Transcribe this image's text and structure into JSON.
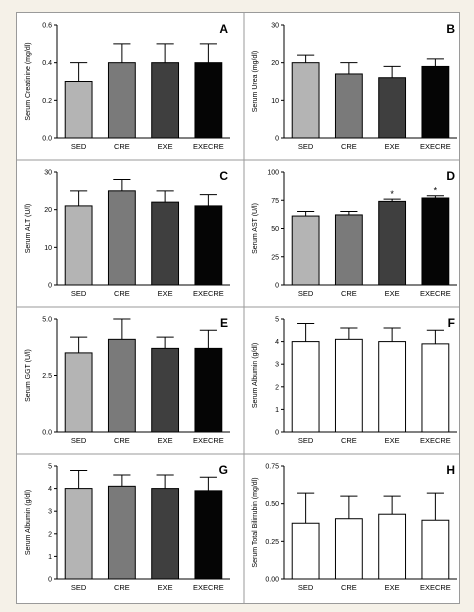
{
  "chart_data": [
    {
      "panel": "A",
      "type": "bar",
      "categories": [
        "SED",
        "CRE",
        "EXE",
        "EXECRE"
      ],
      "values": [
        0.3,
        0.4,
        0.4,
        0.4
      ],
      "errors": [
        0.1,
        0.1,
        0.1,
        0.1
      ],
      "ylabel": "Serum Creatinine (mg/dl)",
      "ylim": [
        0.0,
        0.6
      ],
      "yticks": [
        "0.0",
        "0.2",
        "0.4",
        "0.6"
      ],
      "colors": [
        "#b4b4b4",
        "#7a7a7a",
        "#3f3f3f",
        "#050505"
      ],
      "significance": [
        "",
        "",
        "",
        ""
      ]
    },
    {
      "panel": "B",
      "type": "bar",
      "categories": [
        "SED",
        "CRE",
        "EXE",
        "EXECRE"
      ],
      "values": [
        20,
        17,
        16,
        19
      ],
      "errors": [
        2,
        3,
        3,
        2
      ],
      "ylabel": "Serum Urea (mg/dl)",
      "ylim": [
        0,
        30
      ],
      "yticks": [
        "0",
        "10",
        "20",
        "30"
      ],
      "colors": [
        "#b4b4b4",
        "#7a7a7a",
        "#3f3f3f",
        "#050505"
      ],
      "significance": [
        "",
        "",
        "",
        ""
      ]
    },
    {
      "panel": "C",
      "type": "bar",
      "categories": [
        "SED",
        "CRE",
        "EXE",
        "EXECRE"
      ],
      "values": [
        21,
        25,
        22,
        21
      ],
      "errors": [
        4,
        3,
        3,
        3
      ],
      "ylabel": "Serum ALT (U/l)",
      "ylim": [
        0,
        30
      ],
      "yticks": [
        "0",
        "10",
        "20",
        "30"
      ],
      "colors": [
        "#b4b4b4",
        "#7a7a7a",
        "#3f3f3f",
        "#050505"
      ],
      "significance": [
        "",
        "",
        "",
        ""
      ]
    },
    {
      "panel": "D",
      "type": "bar",
      "categories": [
        "SED",
        "CRE",
        "EXE",
        "EXECRE"
      ],
      "values": [
        61,
        62,
        74,
        77
      ],
      "errors": [
        4,
        3,
        2,
        2
      ],
      "ylabel": "Serum AST (U/l)",
      "ylim": [
        0,
        100
      ],
      "yticks": [
        "0",
        "25",
        "50",
        "75",
        "100"
      ],
      "colors": [
        "#b4b4b4",
        "#7a7a7a",
        "#3f3f3f",
        "#050505"
      ],
      "significance": [
        "",
        "",
        "*",
        "*"
      ]
    },
    {
      "panel": "E",
      "type": "bar",
      "categories": [
        "SED",
        "CRE",
        "EXE",
        "EXECRE"
      ],
      "values": [
        3.5,
        4.1,
        3.7,
        3.7
      ],
      "errors": [
        0.7,
        0.9,
        0.5,
        0.8
      ],
      "ylabel": "Serum GGT (U/l)",
      "ylim": [
        0.0,
        5.0
      ],
      "yticks": [
        "0.0",
        "2.5",
        "5.0"
      ],
      "colors": [
        "#b4b4b4",
        "#7a7a7a",
        "#3f3f3f",
        "#050505"
      ],
      "significance": [
        "",
        "",
        "",
        ""
      ]
    },
    {
      "panel": "F",
      "type": "bar",
      "categories": [
        "SED",
        "CRE",
        "EXE",
        "EXECRE"
      ],
      "values": [
        4.0,
        4.1,
        4.0,
        3.9
      ],
      "errors": [
        0.8,
        0.5,
        0.6,
        0.6
      ],
      "ylabel": "Serum Albumin (g/dl)",
      "ylim": [
        0,
        5
      ],
      "yticks": [
        "0",
        "1",
        "2",
        "3",
        "4",
        "5"
      ],
      "colors": [
        "#ffffff",
        "#ffffff",
        "#ffffff",
        "#ffffff"
      ],
      "significance": [
        "",
        "",
        "",
        ""
      ]
    },
    {
      "panel": "G",
      "type": "bar",
      "categories": [
        "SED",
        "CRE",
        "EXE",
        "EXECRE"
      ],
      "values": [
        4.0,
        4.1,
        4.0,
        3.9
      ],
      "errors": [
        0.8,
        0.5,
        0.6,
        0.6
      ],
      "ylabel": "Serum Albumin (g/dl)",
      "ylim": [
        0,
        5
      ],
      "yticks": [
        "0",
        "1",
        "2",
        "3",
        "4",
        "5"
      ],
      "colors": [
        "#b4b4b4",
        "#7a7a7a",
        "#3f3f3f",
        "#050505"
      ],
      "significance": [
        "",
        "",
        "",
        ""
      ]
    },
    {
      "panel": "H",
      "type": "bar",
      "categories": [
        "SED",
        "CRE",
        "EXE",
        "EXECRE"
      ],
      "values": [
        0.37,
        0.4,
        0.43,
        0.39
      ],
      "errors": [
        0.2,
        0.15,
        0.12,
        0.18
      ],
      "ylabel": "Serum Total Bilirrubin (mg/dl)",
      "ylim": [
        0.0,
        0.75
      ],
      "yticks": [
        "0.00",
        "0.25",
        "0.50",
        "0.75"
      ],
      "colors": [
        "#ffffff",
        "#ffffff",
        "#ffffff",
        "#ffffff"
      ],
      "significance": [
        "",
        "",
        "",
        ""
      ]
    }
  ]
}
